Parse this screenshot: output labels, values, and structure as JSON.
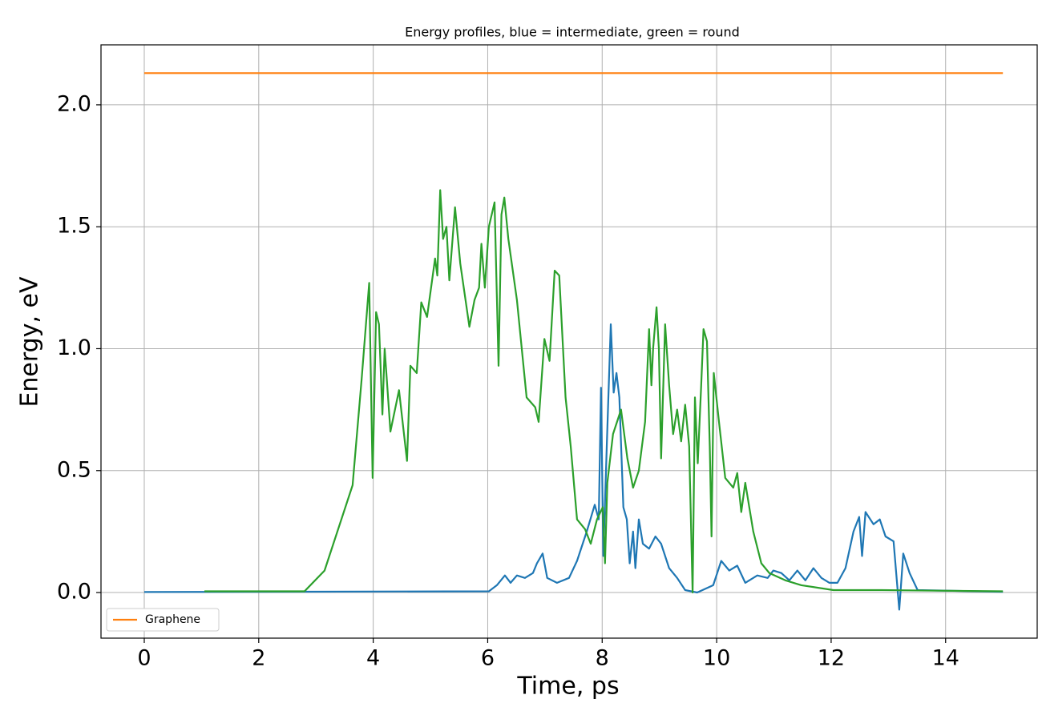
{
  "chart_data": {
    "type": "line",
    "title": "Energy profiles, blue = intermediate, green = round",
    "xlabel": "Time, ps",
    "ylabel": "Energy, eV",
    "xlim": [
      -0.756,
      15.6
    ],
    "ylim": [
      -0.187,
      2.246
    ],
    "xticks": [
      0,
      2,
      4,
      6,
      8,
      10,
      12,
      14
    ],
    "yticks": [
      {
        "value": 0,
        "label": "0.0"
      },
      0.5,
      {
        "value": 1,
        "label": "1.0"
      },
      1.5,
      {
        "value": 2,
        "label": "2.0"
      }
    ],
    "grid": true,
    "legend": "lower left",
    "series": [
      {
        "name": "Graphene",
        "color": "#ff7f0e",
        "x": [
          0,
          15
        ],
        "values": [
          2.13,
          2.13
        ]
      },
      {
        "color": "#1f77b4",
        "x": [
          0,
          6.02,
          6.16,
          6.3,
          6.4,
          6.51,
          6.65,
          6.79,
          6.86,
          6.96,
          7.04,
          7.21,
          7.42,
          7.56,
          7.73,
          7.87,
          7.94,
          7.98,
          8.02,
          8.08,
          8.15,
          8.2,
          8.25,
          8.3,
          8.37,
          8.43,
          8.48,
          8.54,
          8.58,
          8.64,
          8.71,
          8.82,
          8.93,
          9.03,
          9.17,
          9.31,
          9.45,
          9.66,
          9.94,
          10.08,
          10.22,
          10.36,
          10.5,
          10.71,
          10.89,
          10.99,
          11.13,
          11.27,
          11.41,
          11.55,
          11.69,
          11.83,
          11.97,
          12.11,
          12.25,
          12.39,
          12.49,
          12.54,
          12.6,
          12.74,
          12.85,
          12.95,
          13.09,
          13.19,
          13.26,
          13.37,
          13.51,
          15
        ],
        "values": [
          0.002,
          0.005,
          0.03,
          0.07,
          0.04,
          0.07,
          0.06,
          0.08,
          0.12,
          0.16,
          0.06,
          0.04,
          0.06,
          0.13,
          0.25,
          0.36,
          0.3,
          0.84,
          0.15,
          0.6,
          1.1,
          0.82,
          0.9,
          0.8,
          0.35,
          0.3,
          0.12,
          0.25,
          0.1,
          0.3,
          0.2,
          0.18,
          0.23,
          0.2,
          0.1,
          0.06,
          0.01,
          0.0,
          0.03,
          0.13,
          0.09,
          0.11,
          0.04,
          0.07,
          0.06,
          0.09,
          0.08,
          0.05,
          0.09,
          0.05,
          0.1,
          0.06,
          0.04,
          0.04,
          0.1,
          0.25,
          0.31,
          0.15,
          0.33,
          0.28,
          0.3,
          0.23,
          0.21,
          -0.07,
          0.16,
          0.08,
          0.01,
          0.003
        ]
      },
      {
        "color": "#2ca02c",
        "x": [
          1.05,
          2.8,
          3.15,
          3.64,
          3.8,
          3.93,
          3.99,
          4.05,
          4.1,
          4.16,
          4.2,
          4.3,
          4.45,
          4.59,
          4.65,
          4.76,
          4.84,
          4.94,
          5.08,
          5.12,
          5.17,
          5.22,
          5.28,
          5.33,
          5.43,
          5.52,
          5.68,
          5.77,
          5.85,
          5.89,
          5.95,
          6.02,
          6.12,
          6.19,
          6.24,
          6.29,
          6.36,
          6.51,
          6.68,
          6.83,
          6.89,
          6.99,
          7.08,
          7.17,
          7.25,
          7.36,
          7.45,
          7.56,
          7.7,
          7.8,
          7.91,
          8.01,
          8.05,
          8.09,
          8.19,
          8.33,
          8.44,
          8.54,
          8.64,
          8.75,
          8.82,
          8.86,
          8.89,
          8.95,
          8.99,
          9.03,
          9.1,
          9.17,
          9.24,
          9.31,
          9.38,
          9.45,
          9.52,
          9.58,
          9.62,
          9.67,
          9.73,
          9.77,
          9.83,
          9.88,
          9.91,
          9.95,
          10.04,
          10.15,
          10.29,
          10.36,
          10.43,
          10.5,
          10.57,
          10.64,
          10.78,
          10.92,
          11.2,
          11.48,
          12.04,
          12.88,
          15
        ],
        "values": [
          0.005,
          0.005,
          0.09,
          0.44,
          0.88,
          1.27,
          0.47,
          1.15,
          1.1,
          0.73,
          1.0,
          0.66,
          0.83,
          0.54,
          0.93,
          0.9,
          1.19,
          1.13,
          1.37,
          1.3,
          1.65,
          1.45,
          1.5,
          1.28,
          1.58,
          1.35,
          1.09,
          1.2,
          1.25,
          1.43,
          1.25,
          1.5,
          1.6,
          0.93,
          1.55,
          1.62,
          1.45,
          1.2,
          0.8,
          0.76,
          0.7,
          1.04,
          0.95,
          1.32,
          1.3,
          0.8,
          0.6,
          0.3,
          0.26,
          0.2,
          0.3,
          0.35,
          0.12,
          0.45,
          0.65,
          0.75,
          0.55,
          0.43,
          0.5,
          0.7,
          1.08,
          0.85,
          1.0,
          1.17,
          1.0,
          0.55,
          1.1,
          0.85,
          0.65,
          0.75,
          0.62,
          0.77,
          0.6,
          0.0,
          0.8,
          0.53,
          0.85,
          1.08,
          1.03,
          0.6,
          0.23,
          0.9,
          0.7,
          0.47,
          0.43,
          0.49,
          0.33,
          0.45,
          0.35,
          0.25,
          0.12,
          0.08,
          0.05,
          0.03,
          0.01,
          0.01,
          0.005
        ]
      }
    ]
  }
}
